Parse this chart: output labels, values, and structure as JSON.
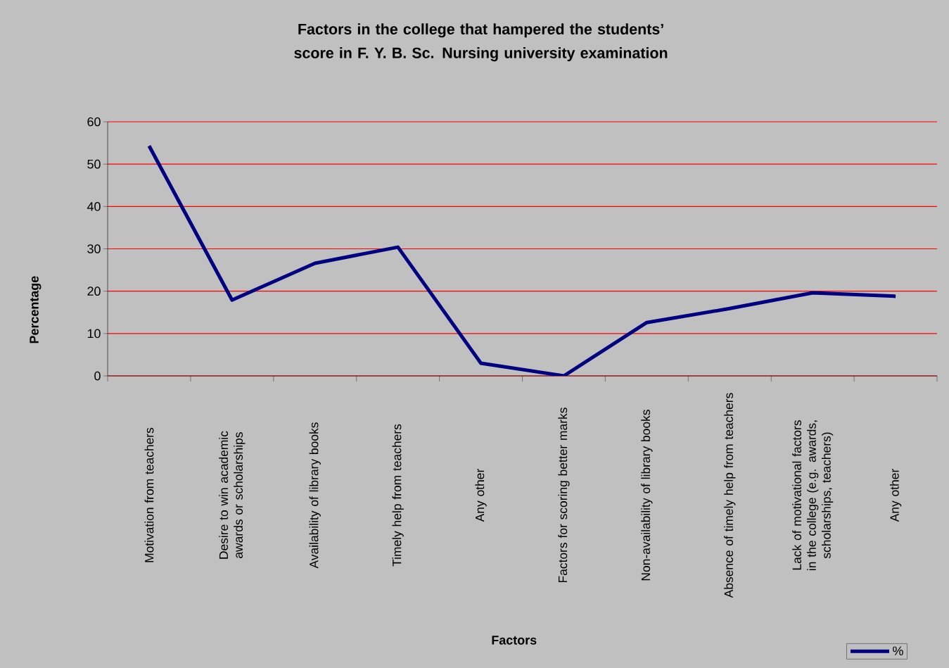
{
  "chart_data": {
    "type": "line",
    "title": "Factors in the college that hampered the students’ score in F. Y. B. Sc. Nursing university examination",
    "xlabel": "Factors",
    "ylabel": "Percentage",
    "categories": [
      "Motivation from teachers",
      "Desire to win academic awards or scholarships",
      "Availability of library books",
      "Timely help from teachers",
      "Any other",
      "Factors for scoring better marks",
      "Non-availability of library books",
      "Absence of timely help from teachers",
      "Lack of motivational factors in the college (e.g. awards, scholarships, teachers)",
      "Any other"
    ],
    "series": [
      {
        "name": "%",
        "color": "#000080",
        "values": [
          54.3,
          17.9,
          26.6,
          30.4,
          3.0,
          0,
          12.6,
          15.9,
          19.6,
          18.8
        ]
      }
    ],
    "ylim": [
      0,
      60
    ],
    "yticks": [
      0,
      10,
      20,
      30,
      40,
      50,
      60
    ],
    "grid": "y",
    "legend": "bottom right",
    "marker": "none",
    "line_style": "solid"
  }
}
